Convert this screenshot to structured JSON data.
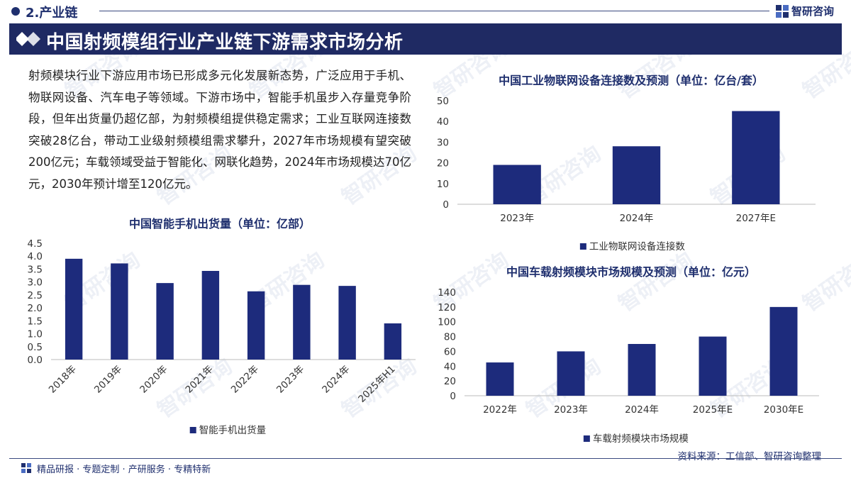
{
  "header": {
    "section": "2.产业链",
    "brand": "智研咨询",
    "title": "中国射频模组行业产业链下游需求市场分析",
    "watermark": "智研咨询"
  },
  "description": "射频模块行业下游应用市场已形成多元化发展新态势，广泛应用于手机、物联网设备、汽车电子等领域。下游市场中，智能手机虽步入存量竞争阶段，但年出货量仍超亿部，为射频模组提供稳定需求；工业互联网连接数突破28亿台，带动工业级射频模组需求攀升，2027年市场规模有望突破200亿元；车载领域受益于智能化、网联化趋势，2024年市场规模达70亿元，2030年预计增至120亿元。",
  "footer": {
    "tags": "精品研报 · 专题定制 · 产研服务 · 专精特新",
    "source": "资料来源：工信部、智研咨询整理"
  },
  "colors": {
    "bar": "#1d2b7c",
    "banner": "#1f2a63",
    "accent": "#1f2f6e"
  },
  "chart_data": [
    {
      "id": "smartphone",
      "type": "bar",
      "title": "中国智能手机出货量（单位：亿部）",
      "categories": [
        "2018年",
        "2019年",
        "2020年",
        "2021年",
        "2022年",
        "2023年",
        "2024年",
        "2025年H1"
      ],
      "series": [
        {
          "name": "智能手机出货量",
          "values": [
            3.9,
            3.72,
            2.96,
            3.43,
            2.64,
            2.89,
            2.85,
            1.4
          ]
        }
      ],
      "ylim": [
        0,
        4.5
      ],
      "yticks": [
        "4.5",
        "4.0",
        "3.5",
        "3.0",
        "2.5",
        "2.0",
        "1.5",
        "1.0",
        "0.5",
        "0.0"
      ],
      "legend": "bottom-center",
      "grid": false
    },
    {
      "id": "iot",
      "type": "bar",
      "title": "中国工业物联网设备连接数及预测（单位：亿台/套）",
      "categories": [
        "2023年",
        "2024年",
        "2027年E"
      ],
      "series": [
        {
          "name": "工业物联网设备连接数",
          "values": [
            19,
            28,
            45
          ]
        }
      ],
      "ylim": [
        0,
        50
      ],
      "yticks": [
        "50",
        "40",
        "30",
        "20",
        "10",
        "0"
      ],
      "legend": "bottom-center",
      "grid": false
    },
    {
      "id": "vehicle",
      "type": "bar",
      "title": "中国车载射频模块市场规模及预测（单位：亿元）",
      "categories": [
        "2022年",
        "2023年",
        "2024年",
        "2025年E",
        "2030年E"
      ],
      "series": [
        {
          "name": "车载射频模块市场规模",
          "values": [
            45,
            60,
            70,
            80,
            120
          ]
        }
      ],
      "ylim": [
        0,
        140
      ],
      "yticks": [
        "140",
        "120",
        "100",
        "80",
        "60",
        "40",
        "20",
        "0"
      ],
      "legend": "bottom-center",
      "grid": false
    }
  ]
}
